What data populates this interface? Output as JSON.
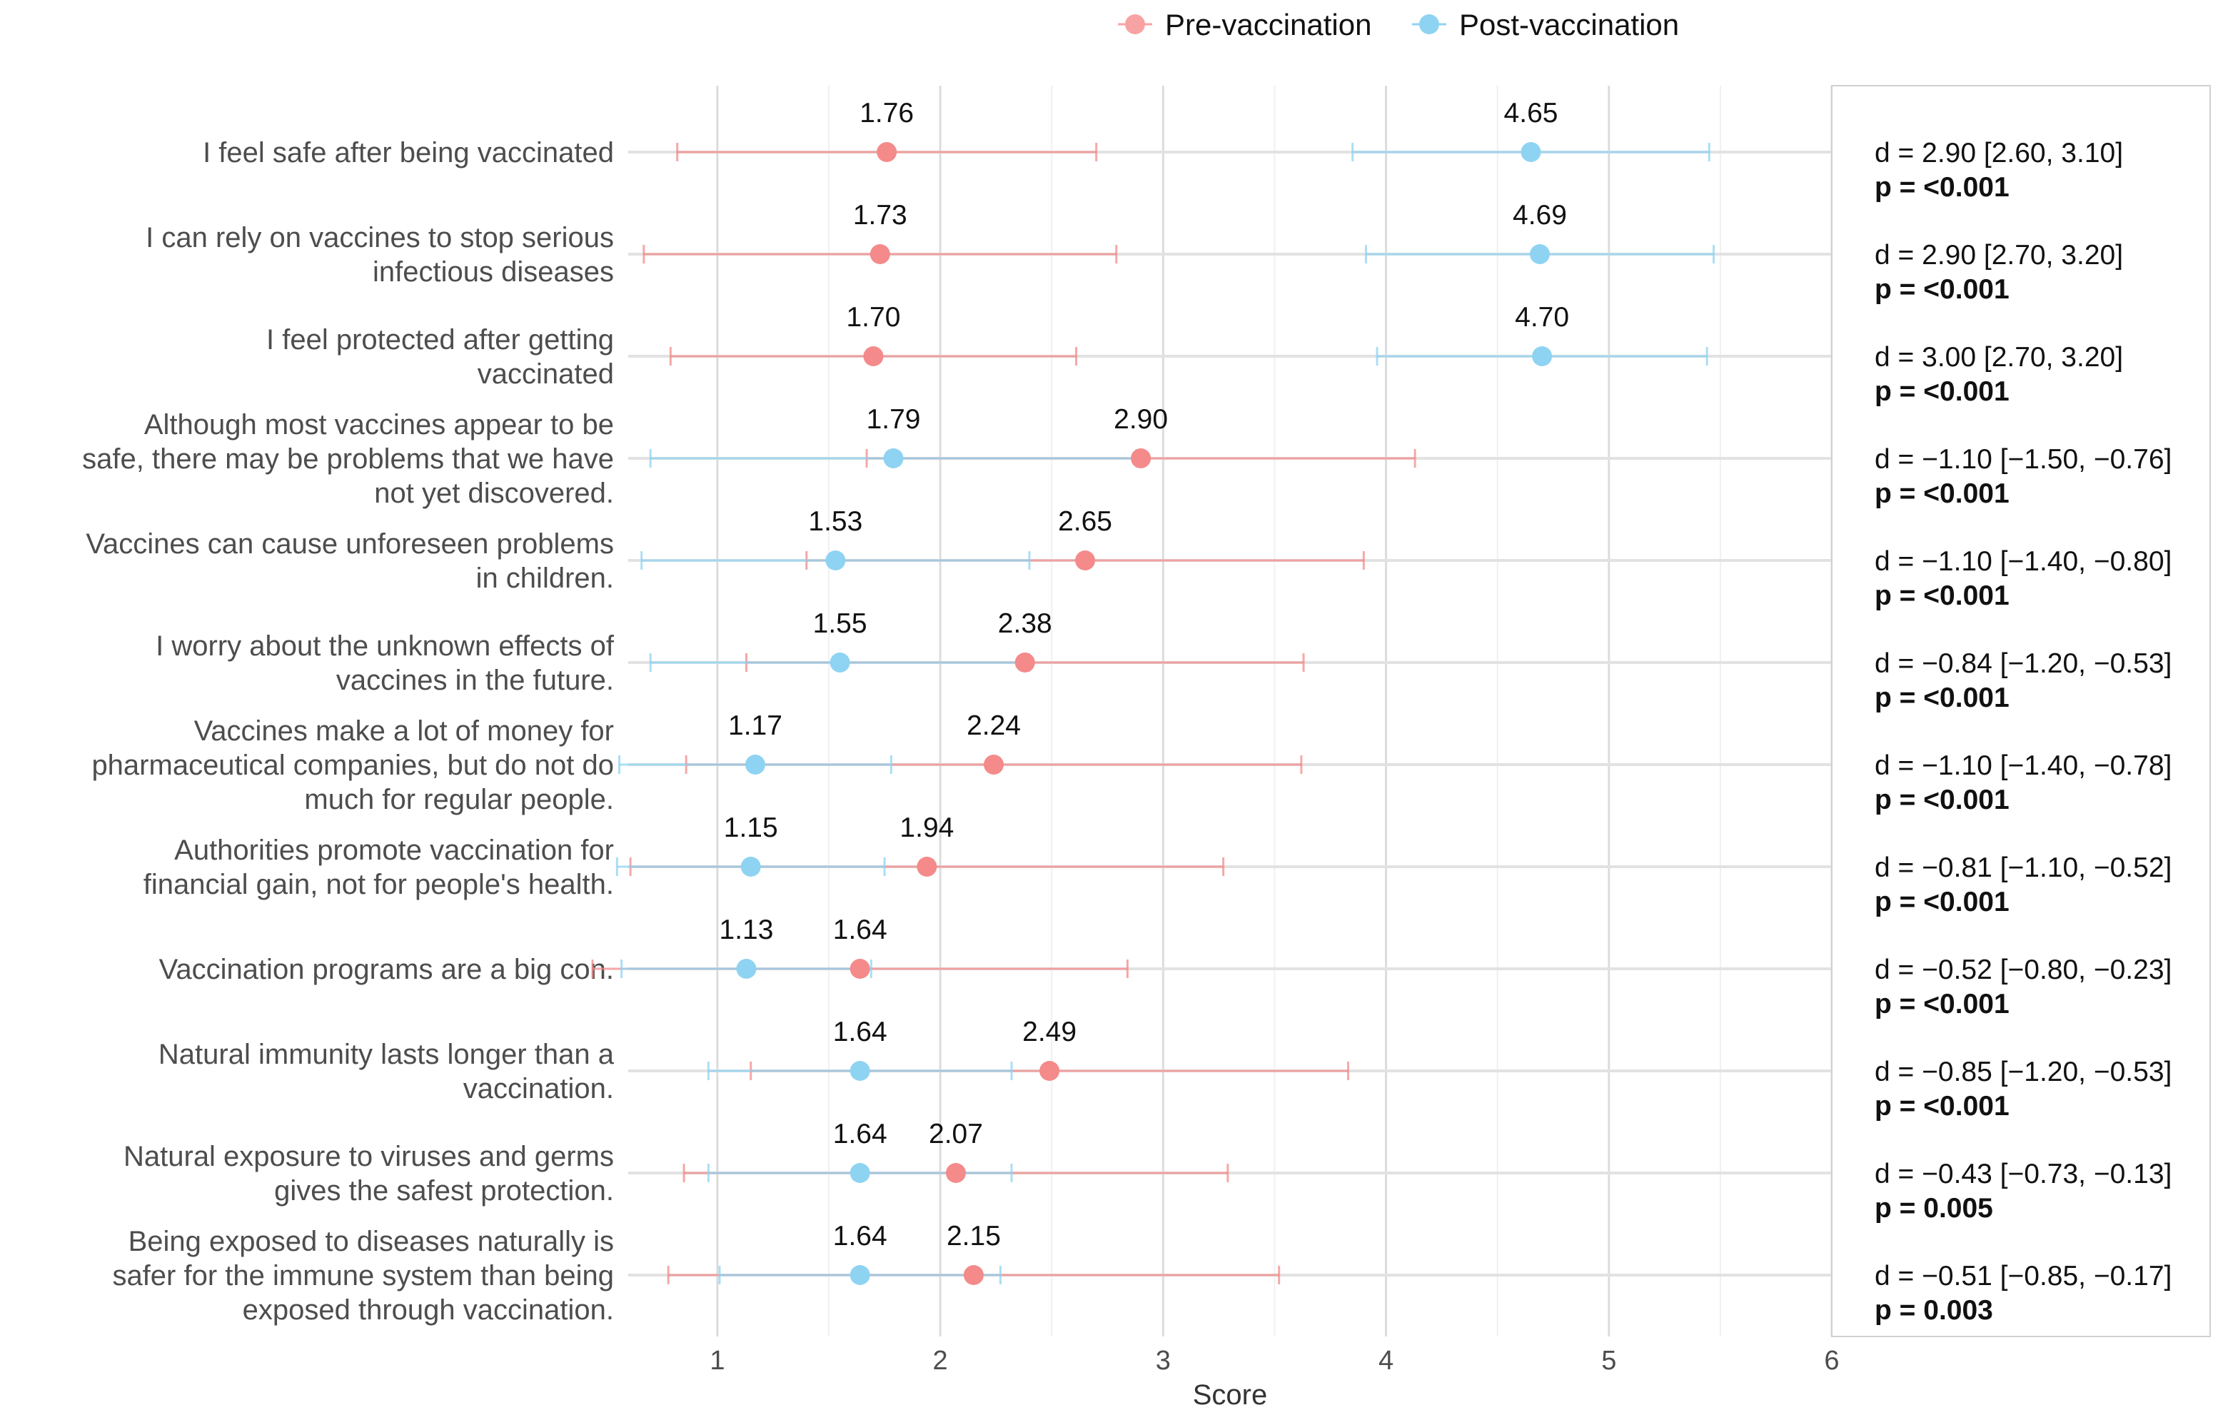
{
  "chart_data": {
    "type": "dot-errorbar",
    "xlabel": "Score",
    "xlim": [
      0.6,
      6
    ],
    "xticks": [
      1,
      2,
      3,
      4,
      5,
      6
    ],
    "legend": {
      "placement": "top-center",
      "entries": [
        {
          "name": "Pre-vaccination",
          "color": "#f8a3a3"
        },
        {
          "name": "Post-vaccination",
          "color": "#8fd3f2"
        }
      ]
    },
    "series_colors": {
      "pre": "#f48a8a",
      "post": "#8fd3f2"
    },
    "items": [
      {
        "label": [
          "I feel safe after being vaccinated"
        ],
        "pre": {
          "mean": 1.76,
          "lo": 0.82,
          "hi": 2.7
        },
        "post": {
          "mean": 4.65,
          "lo": 3.85,
          "hi": 5.45
        },
        "d": "d = 2.90 [2.60, 3.10]",
        "p": "p = <0.001"
      },
      {
        "label": [
          "I can rely on vaccines to stop serious",
          "infectious diseases"
        ],
        "pre": {
          "mean": 1.73,
          "lo": 0.67,
          "hi": 2.79
        },
        "post": {
          "mean": 4.69,
          "lo": 3.91,
          "hi": 5.47
        },
        "d": "d = 2.90 [2.70, 3.20]",
        "p": "p = <0.001"
      },
      {
        "label": [
          "I feel protected after getting",
          "vaccinated"
        ],
        "pre": {
          "mean": 1.7,
          "lo": 0.79,
          "hi": 2.61
        },
        "post": {
          "mean": 4.7,
          "lo": 3.96,
          "hi": 5.44
        },
        "d": "d = 3.00 [2.70, 3.20]",
        "p": "p = <0.001"
      },
      {
        "label": [
          "Although most vaccines appear to be",
          "safe, there may be problems that we have",
          "not yet discovered."
        ],
        "pre": {
          "mean": 2.9,
          "lo": 1.67,
          "hi": 4.13
        },
        "post": {
          "mean": 1.79,
          "lo": 0.7,
          "hi": 2.88
        },
        "d": "d = −1.10 [−1.50, −0.76]",
        "p": "p = <0.001"
      },
      {
        "label": [
          "Vaccines can cause unforeseen problems",
          "in children."
        ],
        "pre": {
          "mean": 2.65,
          "lo": 1.4,
          "hi": 3.9
        },
        "post": {
          "mean": 1.53,
          "lo": 0.66,
          "hi": 2.4
        },
        "d": "d = −1.10 [−1.40, −0.80]",
        "p": "p = <0.001"
      },
      {
        "label": [
          "I worry about the unknown effects of",
          "vaccines in the future."
        ],
        "pre": {
          "mean": 2.38,
          "lo": 1.13,
          "hi": 3.63
        },
        "post": {
          "mean": 1.55,
          "lo": 0.7,
          "hi": 2.4
        },
        "d": "d = −0.84 [−1.20, −0.53]",
        "p": "p = <0.001"
      },
      {
        "label": [
          "Vaccines make a lot of money for",
          "pharmaceutical companies, but do not do",
          "much for regular people."
        ],
        "pre": {
          "mean": 2.24,
          "lo": 0.86,
          "hi": 3.62
        },
        "post": {
          "mean": 1.17,
          "lo": 0.56,
          "hi": 1.78
        },
        "d": "d = −1.10 [−1.40, −0.78]",
        "p": "p = <0.001"
      },
      {
        "label": [
          "Authorities promote vaccination for",
          "financial gain, not for people's health."
        ],
        "pre": {
          "mean": 1.94,
          "lo": 0.61,
          "hi": 3.27
        },
        "post": {
          "mean": 1.15,
          "lo": 0.55,
          "hi": 1.75
        },
        "d": "d = −0.81 [−1.10, −0.52]",
        "p": "p = <0.001"
      },
      {
        "label": [
          "Vaccination programs are a big con."
        ],
        "pre": {
          "mean": 1.64,
          "lo": 0.44,
          "hi": 2.84
        },
        "post": {
          "mean": 1.13,
          "lo": 0.57,
          "hi": 1.69
        },
        "d": "d = −0.52 [−0.80, −0.23]",
        "p": "p = <0.001"
      },
      {
        "label": [
          "Natural immunity lasts longer than a",
          "vaccination."
        ],
        "pre": {
          "mean": 2.49,
          "lo": 1.15,
          "hi": 3.83
        },
        "post": {
          "mean": 1.64,
          "lo": 0.96,
          "hi": 2.32
        },
        "d": "d = −0.85 [−1.20, −0.53]",
        "p": "p = <0.001"
      },
      {
        "label": [
          "Natural exposure to viruses and germs",
          "gives the safest protection."
        ],
        "pre": {
          "mean": 2.07,
          "lo": 0.85,
          "hi": 3.29
        },
        "post": {
          "mean": 1.64,
          "lo": 0.96,
          "hi": 2.32
        },
        "d": "d = −0.43 [−0.73, −0.13]",
        "p": "p = 0.005"
      },
      {
        "label": [
          "Being exposed to diseases naturally is",
          "safer for the immune system than being",
          "exposed through vaccination."
        ],
        "pre": {
          "mean": 2.15,
          "lo": 0.78,
          "hi": 3.52
        },
        "post": {
          "mean": 1.64,
          "lo": 1.01,
          "hi": 2.27
        },
        "d": "d = −0.51 [−0.85, −0.17]",
        "p": "p = 0.003"
      }
    ]
  }
}
